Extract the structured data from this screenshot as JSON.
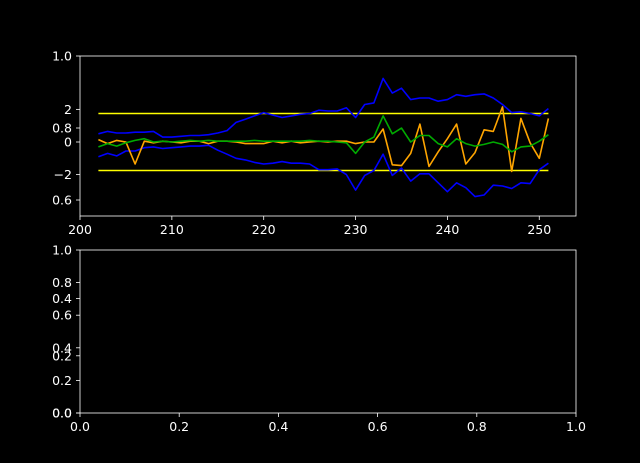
{
  "chart_data": [
    {
      "type": "line",
      "title": "",
      "xlabel": "",
      "ylabel": "",
      "xlim": [
        200,
        254
      ],
      "inner_ylim": [
        -4.2,
        4.2
      ],
      "x_ticks": [
        "200",
        "210",
        "220",
        "230",
        "240",
        "250"
      ],
      "x_tick_values": [
        200,
        210,
        220,
        230,
        240,
        250
      ],
      "y_ticks_outer": [
        "1.0",
        "0.8",
        "0.6"
      ],
      "y_ticks_inner": [
        "2",
        "0",
        "−2"
      ],
      "y_tick_inner_values": [
        2,
        0,
        -2
      ],
      "grid": false,
      "x": [
        202,
        203,
        204,
        205,
        206,
        207,
        208,
        209,
        210,
        211,
        212,
        213,
        214,
        215,
        216,
        217,
        218,
        219,
        220,
        221,
        222,
        223,
        224,
        225,
        226,
        227,
        228,
        229,
        230,
        231,
        232,
        233,
        234,
        235,
        236,
        237,
        238,
        239,
        240,
        241,
        242,
        243,
        244,
        245,
        246,
        247,
        248,
        249,
        250,
        251
      ],
      "series": [
        {
          "color": "#ffff00",
          "values": [
            1.75,
            1.75,
            1.75,
            1.75,
            1.75,
            1.75,
            1.75,
            1.75,
            1.75,
            1.75,
            1.75,
            1.75,
            1.75,
            1.75,
            1.75,
            1.75,
            1.75,
            1.75,
            1.75,
            1.75,
            1.75,
            1.75,
            1.75,
            1.75,
            1.75,
            1.75,
            1.75,
            1.75,
            1.75,
            1.75,
            1.75,
            1.75,
            1.75,
            1.75,
            1.75,
            1.75,
            1.75,
            1.75,
            1.75,
            1.75,
            1.75,
            1.75,
            1.75,
            1.75,
            1.75,
            1.75,
            1.75,
            1.75,
            1.75,
            1.75
          ]
        },
        {
          "color": "#ffff00",
          "values": [
            -1.75,
            -1.75,
            -1.75,
            -1.75,
            -1.75,
            -1.75,
            -1.75,
            -1.75,
            -1.75,
            -1.75,
            -1.75,
            -1.75,
            -1.75,
            -1.75,
            -1.75,
            -1.75,
            -1.75,
            -1.75,
            -1.75,
            -1.75,
            -1.75,
            -1.75,
            -1.75,
            -1.75,
            -1.75,
            -1.75,
            -1.75,
            -1.75,
            -1.75,
            -1.75,
            -1.75,
            -1.75,
            -1.75,
            -1.75,
            -1.75,
            -1.75,
            -1.75,
            -1.75,
            -1.75,
            -1.75,
            -1.75,
            -1.75,
            -1.75,
            -1.75,
            -1.75,
            -1.75,
            -1.75,
            -1.75,
            -1.75,
            -1.75
          ]
        },
        {
          "color": "#0000ff",
          "values": [
            0.5,
            0.65,
            0.55,
            0.55,
            0.6,
            0.6,
            0.65,
            0.3,
            0.3,
            0.35,
            0.4,
            0.4,
            0.45,
            0.55,
            0.7,
            1.2,
            1.4,
            1.6,
            1.8,
            1.65,
            1.5,
            1.6,
            1.7,
            1.75,
            1.95,
            1.9,
            1.9,
            2.1,
            1.5,
            2.3,
            2.4,
            3.9,
            3.0,
            3.3,
            2.6,
            2.7,
            2.7,
            2.5,
            2.6,
            2.9,
            2.8,
            2.9,
            2.95,
            2.7,
            2.3,
            1.8,
            1.85,
            1.75,
            1.6,
            2.05
          ]
        },
        {
          "color": "#0000ff",
          "values": [
            -0.9,
            -0.7,
            -0.85,
            -0.55,
            -0.55,
            -0.35,
            -0.3,
            -0.4,
            -0.35,
            -0.3,
            -0.25,
            -0.25,
            -0.2,
            -0.5,
            -0.75,
            -1.0,
            -1.1,
            -1.25,
            -1.35,
            -1.3,
            -1.2,
            -1.3,
            -1.3,
            -1.35,
            -1.7,
            -1.7,
            -1.65,
            -2.0,
            -2.95,
            -2.05,
            -1.75,
            -0.75,
            -2.05,
            -1.6,
            -2.4,
            -1.95,
            -1.95,
            -2.5,
            -3.05,
            -2.5,
            -2.8,
            -3.35,
            -3.25,
            -2.65,
            -2.7,
            -2.85,
            -2.5,
            -2.55,
            -1.7,
            -1.3
          ]
        },
        {
          "color": "#ffa500",
          "values": [
            0.15,
            -0.1,
            0.1,
            0.0,
            -1.35,
            0.05,
            -0.05,
            0.05,
            0.0,
            -0.05,
            0.05,
            0.05,
            -0.1,
            0.05,
            0.05,
            0.0,
            -0.1,
            -0.1,
            -0.1,
            0.05,
            -0.05,
            0.05,
            -0.05,
            0.0,
            0.05,
            0.0,
            0.05,
            0.05,
            -0.1,
            0.0,
            0.0,
            0.8,
            -1.4,
            -1.45,
            -0.7,
            1.1,
            -1.5,
            -0.6,
            0.2,
            1.1,
            -1.35,
            -0.65,
            0.75,
            0.65,
            2.15,
            -1.8,
            1.45,
            -0.05,
            -1.0,
            1.45
          ]
        },
        {
          "color": "#00aa00",
          "values": [
            -0.3,
            -0.1,
            -0.25,
            -0.05,
            0.1,
            0.2,
            0.0,
            0.05,
            0.0,
            0.05,
            0.1,
            0.05,
            0.1,
            0.05,
            0.05,
            0.05,
            0.05,
            0.1,
            0.05,
            0.05,
            0.05,
            0.05,
            0.05,
            0.1,
            0.05,
            0.05,
            0.0,
            -0.05,
            -0.7,
            0.0,
            0.3,
            1.6,
            0.5,
            0.85,
            0.0,
            0.4,
            0.4,
            -0.1,
            -0.3,
            0.2,
            -0.1,
            -0.25,
            -0.15,
            0.0,
            -0.15,
            -0.6,
            -0.3,
            -0.25,
            0.05,
            0.45
          ]
        }
      ]
    },
    {
      "type": "line",
      "title": "",
      "xlabel": "",
      "ylabel": "",
      "xlim": [
        0,
        1
      ],
      "ylim": [
        0,
        1
      ],
      "x_ticks": [
        "0.0",
        "0.2",
        "0.4",
        "0.6",
        "0.8",
        "1.0"
      ],
      "x_tick_values": [
        0,
        0.2,
        0.4,
        0.6,
        0.8,
        1.0
      ],
      "y_ticks_outer": [
        "0.0",
        "0.2",
        "0.4",
        "0.6",
        "0.8",
        "1.0"
      ],
      "y_tick_outer_values": [
        0,
        0.2,
        0.4,
        0.6,
        0.8,
        1.0
      ],
      "y_ticks_inner": [
        "0.0",
        "0.2",
        "0.4"
      ],
      "y_tick_inner_values": [
        0,
        0.2,
        0.4
      ],
      "grid": false,
      "series": []
    }
  ]
}
